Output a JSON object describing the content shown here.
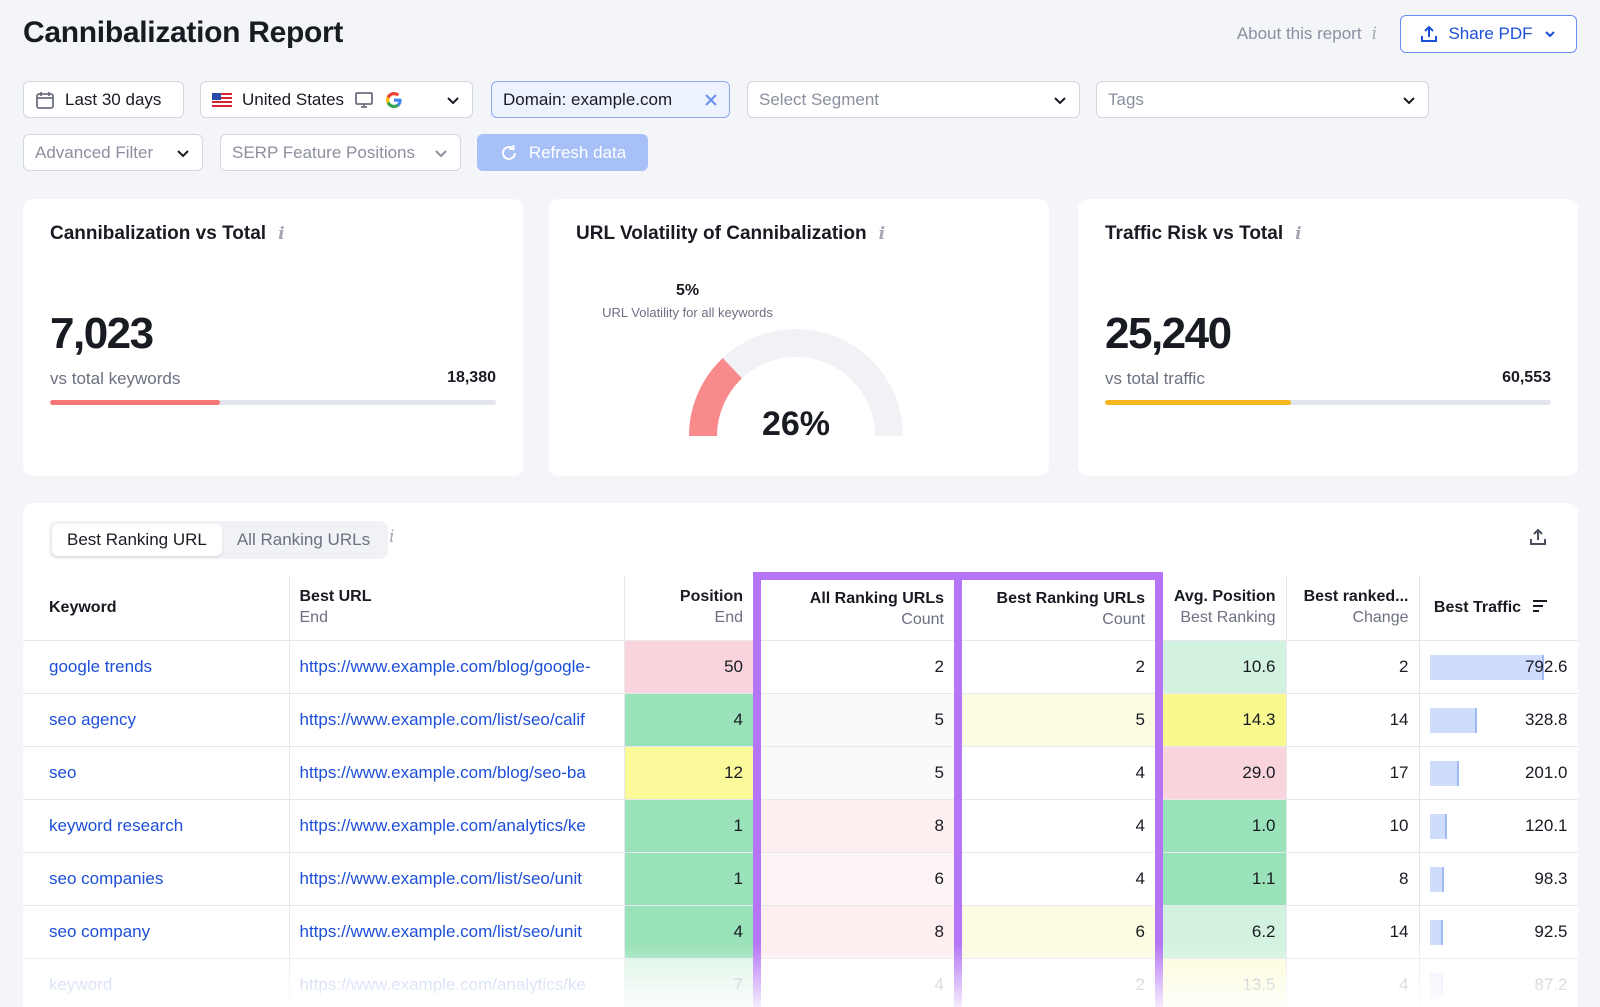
{
  "header": {
    "title": "Cannibalization Report",
    "about_label": "About this report",
    "share_label": "Share PDF"
  },
  "filters": {
    "date": "Last 30 days",
    "country": "United States",
    "domain": "Domain: example.com",
    "segment_placeholder": "Select Segment",
    "tags_placeholder": "Tags",
    "advanced_filter": "Advanced Filter",
    "serp_positions": "SERP Feature Positions",
    "refresh_label": "Refresh data"
  },
  "cards": {
    "cannibalization": {
      "title": "Cannibalization vs Total",
      "value": "7,023",
      "sub_label": "vs total keywords",
      "total": "18,380",
      "fill_fraction": 0.382,
      "fill_color": "#f6767a"
    },
    "volatility": {
      "title": "URL Volatility of Cannibalization",
      "overall_pct": "5%",
      "overall_caption": "URL Volatility for all keywords",
      "value": "26%",
      "fill_fraction": 0.26,
      "fill_color": "#f88a8c",
      "track_color": "#f1f2f6"
    },
    "traffic": {
      "title": "Traffic Risk vs Total",
      "value": "25,240",
      "sub_label": "vs total traffic",
      "total": "60,553",
      "fill_fraction": 0.417,
      "fill_color": "#f5b51d"
    }
  },
  "table": {
    "tabs": [
      "Best Ranking URL",
      "All Ranking URLs"
    ],
    "active_tab": 0,
    "columns": [
      {
        "title": "Keyword",
        "sub": ""
      },
      {
        "title": "Best URL",
        "sub": "End"
      },
      {
        "title": "Position",
        "sub": "End"
      },
      {
        "title": "All Ranking URLs",
        "sub": "Count"
      },
      {
        "title": "Best Ranking URLs",
        "sub": "Count"
      },
      {
        "title": "Avg. Position",
        "sub": "Best Ranking"
      },
      {
        "title": "Best ranked...",
        "sub": "Change"
      },
      {
        "title": "Best Traffic",
        "sub": ""
      }
    ],
    "traffic_max": 792.6,
    "rows": [
      {
        "keyword": "google trends",
        "url": "https://www.example.com/blog/google-",
        "position": "50",
        "position_color": "#f9d4dc",
        "all_urls": "2",
        "all_color": "#ffffff",
        "best_urls": "2",
        "best_color": "#ffffff",
        "avg_pos": "10.6",
        "avg_color": "#d2f2df",
        "change": "2",
        "traffic": "792.6"
      },
      {
        "keyword": "seo agency",
        "url": "https://www.example.com/list/seo/calif",
        "position": "4",
        "position_color": "#9ae2b9",
        "all_urls": "5",
        "all_color": "#fafafb",
        "best_urls": "5",
        "best_color": "#fcfce2",
        "avg_pos": "14.3",
        "avg_color": "#f9f98f",
        "change": "14",
        "traffic": "328.8"
      },
      {
        "keyword": "seo",
        "url": "https://www.example.com/blog/seo-ba",
        "position": "12",
        "position_color": "#fafa9a",
        "all_urls": "5",
        "all_color": "#fafafb",
        "best_urls": "4",
        "best_color": "#ffffff",
        "avg_pos": "29.0",
        "avg_color": "#f9d4dc",
        "change": "17",
        "traffic": "201.0"
      },
      {
        "keyword": "keyword research",
        "url": "https://www.example.com/analytics/ke",
        "position": "1",
        "position_color": "#9ae2b9",
        "all_urls": "8",
        "all_color": "#fdeef0",
        "best_urls": "4",
        "best_color": "#ffffff",
        "avg_pos": "1.0",
        "avg_color": "#9ae2b9",
        "change": "10",
        "traffic": "120.1"
      },
      {
        "keyword": "seo companies",
        "url": "https://www.example.com/list/seo/unit",
        "position": "1",
        "position_color": "#9ae2b9",
        "all_urls": "6",
        "all_color": "#fcf4f5",
        "best_urls": "4",
        "best_color": "#ffffff",
        "avg_pos": "1.1",
        "avg_color": "#9ae2b9",
        "change": "8",
        "traffic": "98.3"
      },
      {
        "keyword": "seo company",
        "url": "https://www.example.com/list/seo/unit",
        "position": "4",
        "position_color": "#9ae2b9",
        "all_urls": "8",
        "all_color": "#fdeef0",
        "best_urls": "6",
        "best_color": "#fcfce2",
        "avg_pos": "6.2",
        "avg_color": "#d2f2df",
        "change": "14",
        "traffic": "92.5"
      },
      {
        "keyword": "keyword",
        "url": "https://www.example.com/analytics/ke",
        "position": "7",
        "position_color": "#9ae2b9",
        "all_urls": "4",
        "all_color": "#ffffff",
        "best_urls": "2",
        "best_color": "#ffffff",
        "avg_pos": "13.5",
        "avg_color": "#f9f98f",
        "change": "4",
        "traffic": "87.2"
      }
    ]
  }
}
